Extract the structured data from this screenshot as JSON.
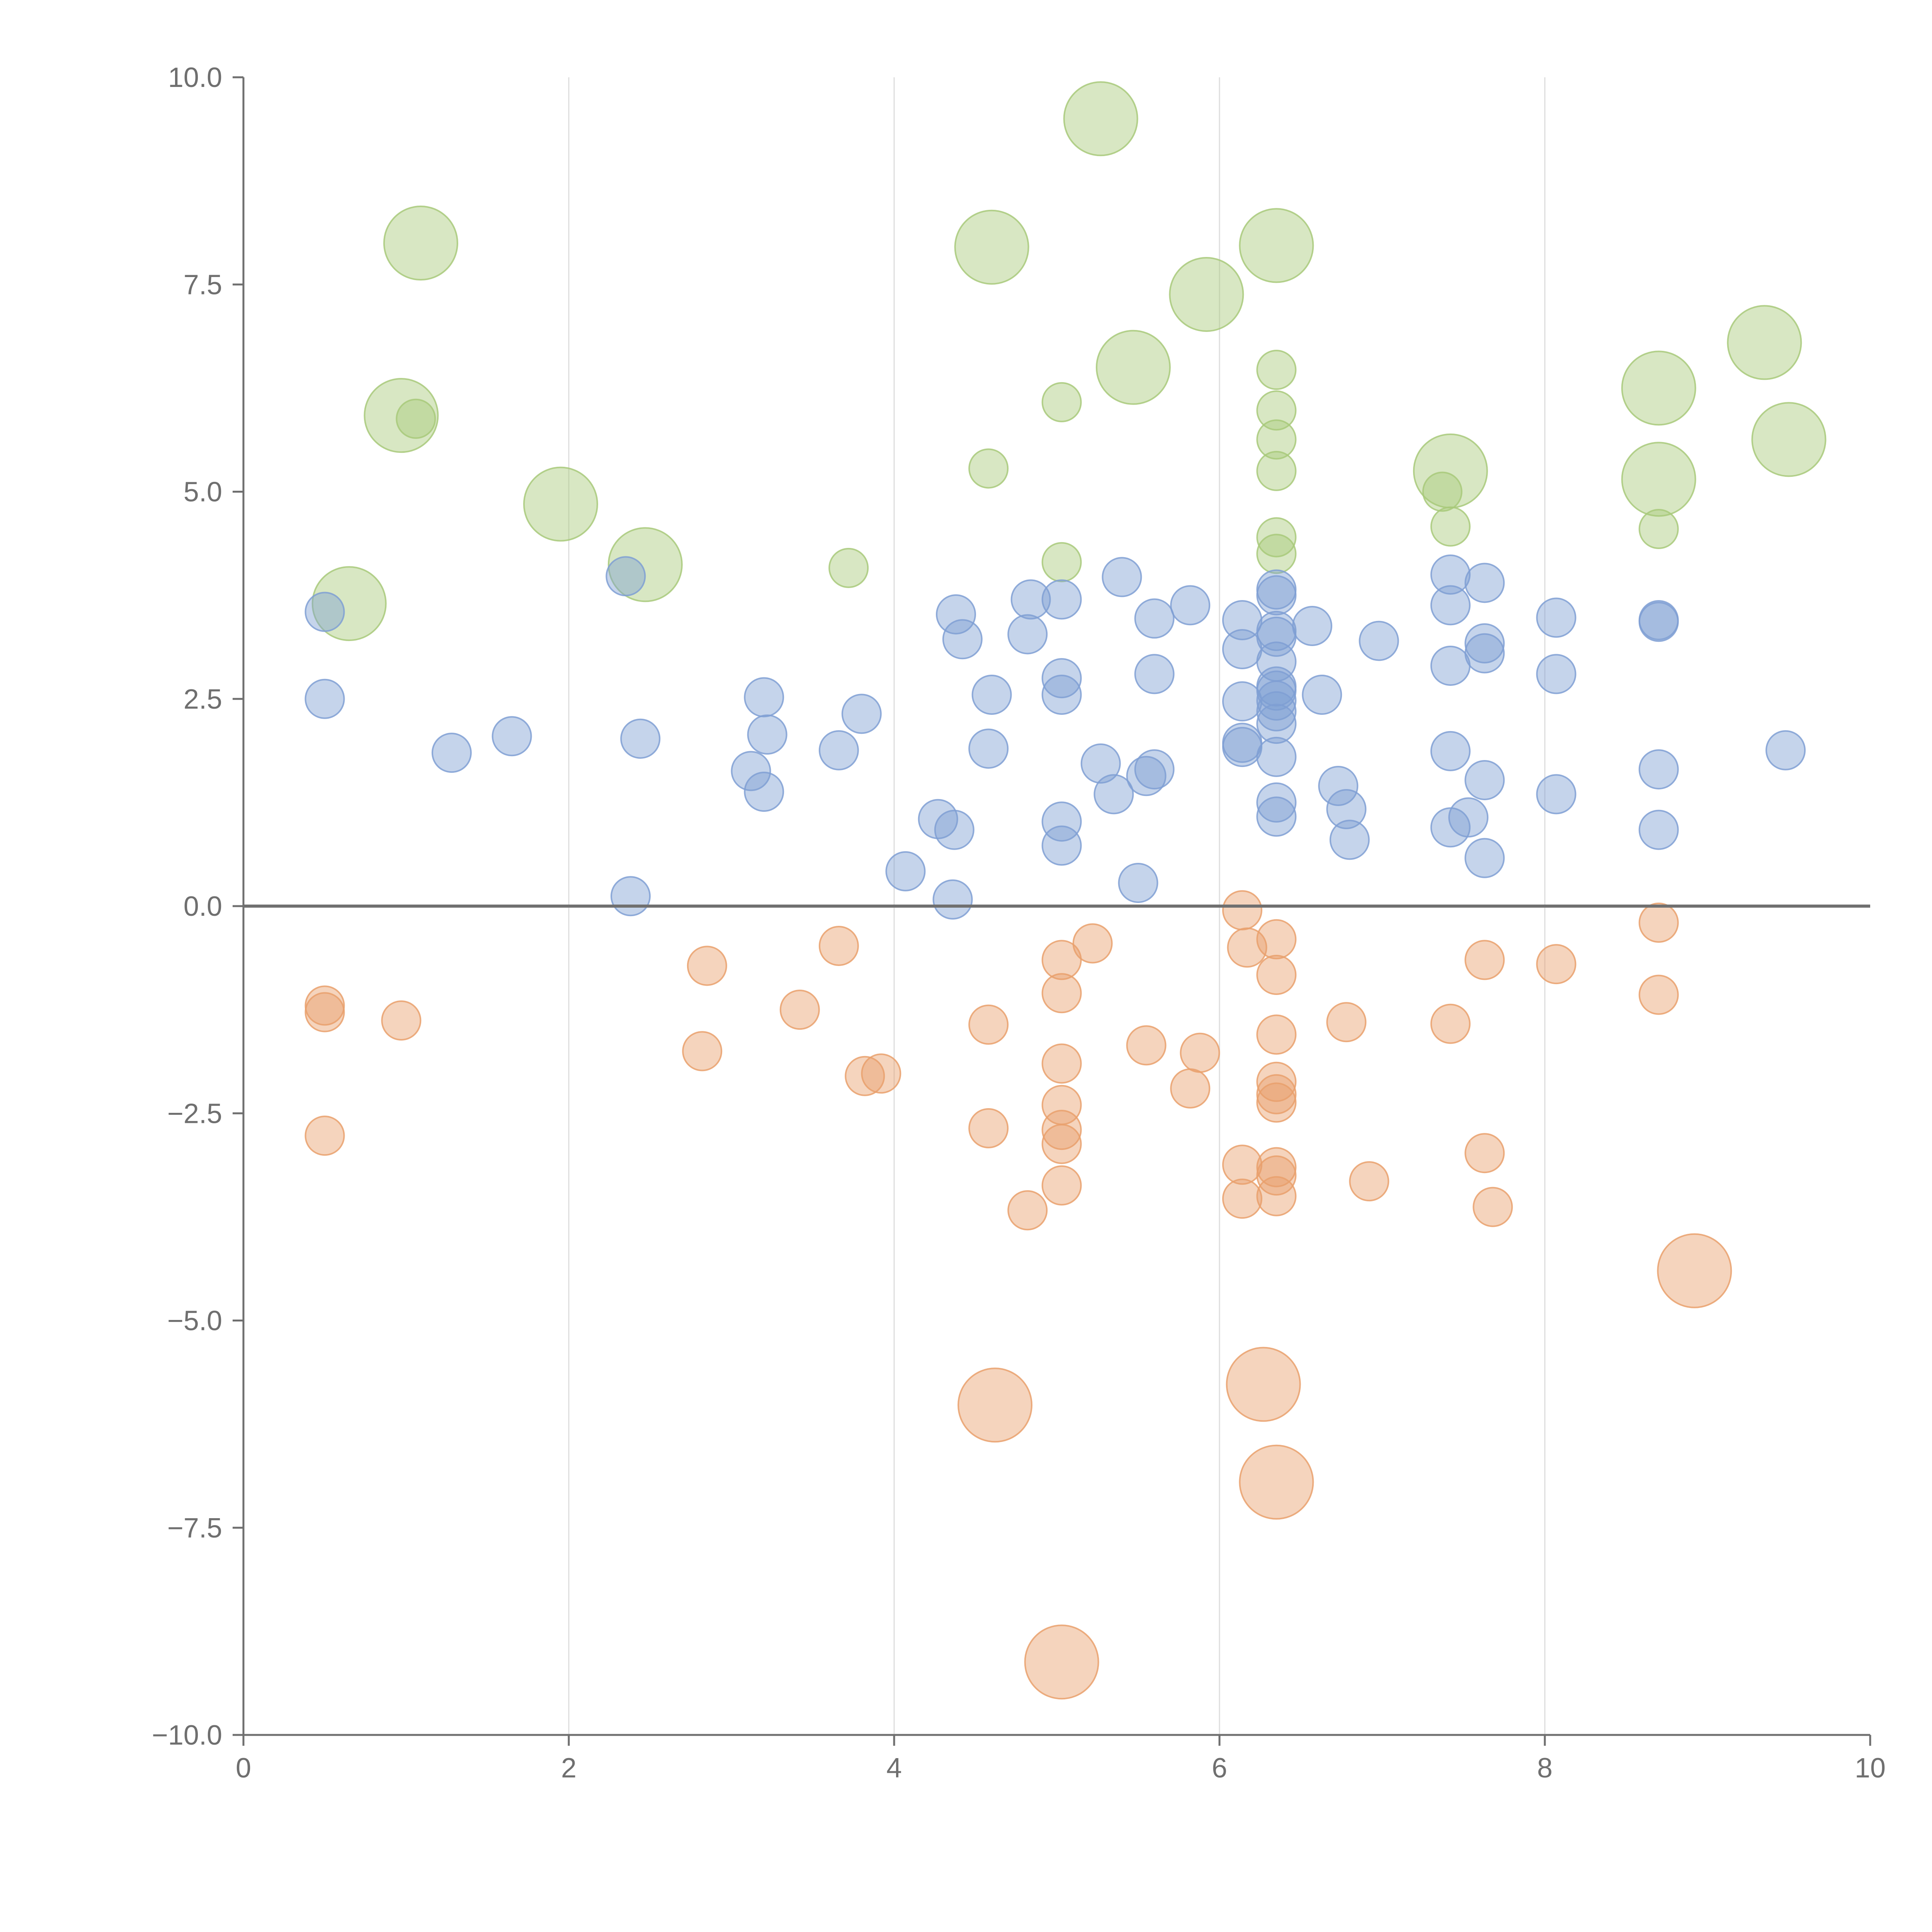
{
  "chart_data": {
    "type": "scatter",
    "title": "",
    "xlabel": "",
    "ylabel": "",
    "xlim": [
      0,
      10
    ],
    "ylim": [
      -10,
      10
    ],
    "x_ticks": [
      0,
      2,
      4,
      6,
      8,
      10
    ],
    "x_tick_labels": [
      "0",
      "2",
      "4",
      "6",
      "8",
      "10"
    ],
    "y_ticks": [
      10,
      7.5,
      5,
      2.5,
      0,
      -2.5,
      -5,
      -7.5,
      -10
    ],
    "y_tick_labels": [
      "10.0",
      "7.5",
      "5.0",
      "2.5",
      "0.0",
      "−2.5",
      "−5.0",
      "−7.5",
      "−10.0"
    ],
    "vertical_grid": true,
    "reference_line_y": 0,
    "size_units": "relative (1 = small bubble, ~1.9 = large bubble)",
    "series": [
      {
        "name": "green",
        "color": "#a8c97a",
        "points": [
          [
            5.27,
            9.5,
            1.9
          ],
          [
            1.09,
            8.0,
            1.9
          ],
          [
            4.6,
            7.95,
            1.9
          ],
          [
            6.35,
            7.97,
            1.9
          ],
          [
            5.92,
            7.38,
            1.9
          ],
          [
            9.35,
            6.8,
            1.9
          ],
          [
            5.47,
            6.5,
            1.9
          ],
          [
            8.7,
            6.25,
            1.9
          ],
          [
            0.97,
            5.92,
            1.9
          ],
          [
            9.5,
            5.63,
            1.9
          ],
          [
            7.42,
            5.25,
            1.9
          ],
          [
            8.7,
            5.15,
            1.9
          ],
          [
            1.95,
            4.85,
            1.9
          ],
          [
            2.47,
            4.12,
            1.9
          ],
          [
            0.65,
            3.65,
            1.9
          ],
          [
            6.35,
            6.47,
            1
          ],
          [
            5.03,
            6.08,
            1
          ],
          [
            6.35,
            5.98,
            1
          ],
          [
            1.06,
            5.88,
            1
          ],
          [
            6.35,
            5.63,
            1
          ],
          [
            4.58,
            5.28,
            1
          ],
          [
            6.35,
            5.25,
            1
          ],
          [
            7.37,
            5.0,
            1
          ],
          [
            7.42,
            4.58,
            1
          ],
          [
            8.7,
            4.55,
            1
          ],
          [
            6.35,
            4.45,
            1
          ],
          [
            6.35,
            4.25,
            1
          ],
          [
            5.03,
            4.15,
            1
          ],
          [
            3.72,
            4.08,
            1
          ]
        ]
      },
      {
        "name": "blue",
        "color": "#7f9fd3",
        "points": [
          [
            0.5,
            3.55,
            1
          ],
          [
            0.5,
            2.5,
            1
          ],
          [
            1.28,
            1.85,
            1
          ],
          [
            1.65,
            2.05,
            1
          ],
          [
            2.35,
            3.98,
            1
          ],
          [
            2.44,
            2.02,
            1
          ],
          [
            2.38,
            0.12,
            1
          ],
          [
            3.2,
            2.52,
            1
          ],
          [
            3.22,
            2.07,
            1
          ],
          [
            3.12,
            1.63,
            1
          ],
          [
            3.2,
            1.38,
            1
          ],
          [
            3.66,
            1.88,
            1
          ],
          [
            3.8,
            2.32,
            1
          ],
          [
            4.07,
            0.42,
            1
          ],
          [
            4.27,
            1.05,
            1
          ],
          [
            4.37,
            0.92,
            1
          ],
          [
            4.36,
            0.08,
            1
          ],
          [
            4.38,
            3.52,
            1
          ],
          [
            4.42,
            3.22,
            1
          ],
          [
            4.6,
            2.55,
            1
          ],
          [
            4.58,
            1.9,
            1
          ],
          [
            4.82,
            3.28,
            1
          ],
          [
            4.84,
            3.7,
            1
          ],
          [
            5.03,
            3.7,
            1
          ],
          [
            5.03,
            2.75,
            1
          ],
          [
            5.03,
            2.55,
            1
          ],
          [
            5.03,
            1.02,
            1
          ],
          [
            5.03,
            0.73,
            1
          ],
          [
            5.27,
            1.72,
            1
          ],
          [
            5.35,
            1.35,
            1
          ],
          [
            5.4,
            3.97,
            1
          ],
          [
            5.5,
            0.28,
            1
          ],
          [
            5.55,
            1.57,
            1
          ],
          [
            5.6,
            1.65,
            1
          ],
          [
            5.6,
            3.47,
            1
          ],
          [
            5.6,
            2.8,
            1
          ],
          [
            5.82,
            3.63,
            1
          ],
          [
            6.14,
            3.45,
            1
          ],
          [
            6.14,
            3.1,
            1
          ],
          [
            6.14,
            2.47,
            1
          ],
          [
            6.14,
            1.97,
            1
          ],
          [
            6.14,
            1.92,
            1
          ],
          [
            6.35,
            3.82,
            1
          ],
          [
            6.35,
            3.75,
            1
          ],
          [
            6.35,
            3.32,
            1
          ],
          [
            6.35,
            3.25,
            1
          ],
          [
            6.35,
            2.95,
            1
          ],
          [
            6.35,
            2.65,
            1
          ],
          [
            6.35,
            2.6,
            1
          ],
          [
            6.35,
            2.48,
            1
          ],
          [
            6.35,
            2.35,
            1
          ],
          [
            6.35,
            2.2,
            1
          ],
          [
            6.35,
            1.8,
            1
          ],
          [
            6.35,
            1.25,
            1
          ],
          [
            6.35,
            1.08,
            1
          ],
          [
            6.57,
            3.38,
            1
          ],
          [
            6.63,
            2.55,
            1
          ],
          [
            6.73,
            1.45,
            1
          ],
          [
            6.78,
            1.17,
            1
          ],
          [
            6.8,
            0.8,
            1
          ],
          [
            6.98,
            3.2,
            1
          ],
          [
            7.42,
            4.0,
            1
          ],
          [
            7.42,
            3.63,
            1
          ],
          [
            7.42,
            2.9,
            1
          ],
          [
            7.42,
            1.87,
            1
          ],
          [
            7.42,
            0.95,
            1
          ],
          [
            7.53,
            1.07,
            1
          ],
          [
            7.63,
            3.9,
            1
          ],
          [
            7.63,
            3.17,
            1
          ],
          [
            7.63,
            3.05,
            1
          ],
          [
            7.63,
            1.52,
            1
          ],
          [
            7.63,
            0.58,
            1
          ],
          [
            8.07,
            3.48,
            1
          ],
          [
            8.07,
            2.8,
            1
          ],
          [
            8.07,
            1.35,
            1
          ],
          [
            8.7,
            3.45,
            1
          ],
          [
            8.7,
            3.43,
            1
          ],
          [
            8.7,
            1.65,
            1
          ],
          [
            8.7,
            0.92,
            1
          ],
          [
            9.48,
            1.88,
            1
          ]
        ]
      },
      {
        "name": "orange",
        "color": "#e9a06c",
        "points": [
          [
            0.5,
            -1.2,
            1
          ],
          [
            0.5,
            -1.28,
            1
          ],
          [
            0.5,
            -2.77,
            1
          ],
          [
            0.97,
            -1.38,
            1
          ],
          [
            2.85,
            -0.72,
            1
          ],
          [
            2.82,
            -1.75,
            1
          ],
          [
            3.42,
            -1.25,
            1
          ],
          [
            3.66,
            -0.48,
            1
          ],
          [
            3.82,
            -2.05,
            1
          ],
          [
            3.92,
            -2.02,
            1
          ],
          [
            4.58,
            -1.43,
            1
          ],
          [
            4.58,
            -2.68,
            1
          ],
          [
            4.82,
            -3.67,
            1
          ],
          [
            5.03,
            -0.65,
            1
          ],
          [
            5.03,
            -1.05,
            1
          ],
          [
            5.03,
            -1.9,
            1
          ],
          [
            5.03,
            -2.4,
            1
          ],
          [
            5.03,
            -2.7,
            1
          ],
          [
            5.03,
            -2.87,
            1
          ],
          [
            5.03,
            -3.37,
            1
          ],
          [
            5.22,
            -0.45,
            1
          ],
          [
            5.55,
            -1.68,
            1
          ],
          [
            5.82,
            -2.2,
            1
          ],
          [
            5.88,
            -1.77,
            1
          ],
          [
            6.14,
            -0.05,
            1
          ],
          [
            6.17,
            -0.5,
            1
          ],
          [
            6.14,
            -3.12,
            1
          ],
          [
            6.14,
            -3.53,
            1
          ],
          [
            6.35,
            -0.4,
            1
          ],
          [
            6.35,
            -0.83,
            1
          ],
          [
            6.35,
            -1.55,
            1
          ],
          [
            6.35,
            -2.12,
            1
          ],
          [
            6.35,
            -2.27,
            1
          ],
          [
            6.35,
            -2.37,
            1
          ],
          [
            6.35,
            -3.15,
            1
          ],
          [
            6.35,
            -3.25,
            1
          ],
          [
            6.35,
            -3.5,
            1
          ],
          [
            6.78,
            -1.4,
            1
          ],
          [
            6.92,
            -3.32,
            1
          ],
          [
            7.42,
            -1.42,
            1
          ],
          [
            7.63,
            -0.65,
            1
          ],
          [
            7.63,
            -2.98,
            1
          ],
          [
            7.68,
            -3.63,
            1
          ],
          [
            8.07,
            -0.7,
            1
          ],
          [
            8.7,
            -0.2,
            1
          ],
          [
            8.7,
            -1.07,
            1
          ],
          [
            8.92,
            -4.4,
            1.9
          ],
          [
            4.62,
            -6.02,
            1.9
          ],
          [
            6.27,
            -5.77,
            1.9
          ],
          [
            6.35,
            -6.95,
            1.9
          ],
          [
            5.03,
            -9.12,
            1.9
          ]
        ]
      }
    ]
  }
}
